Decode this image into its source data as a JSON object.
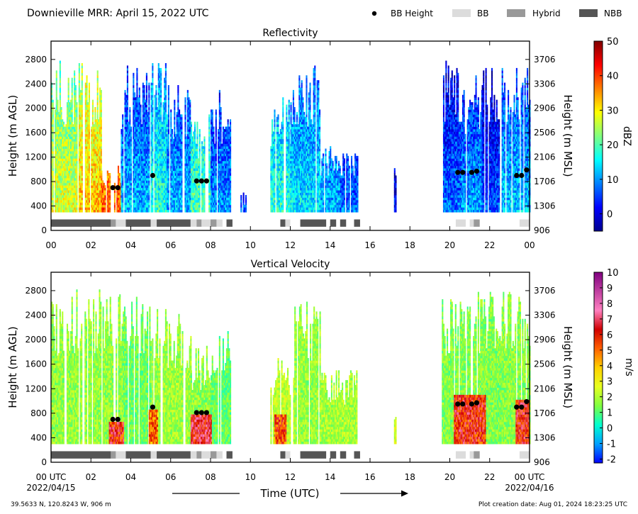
{
  "header": {
    "title": "Downieville MRR:  April 15, 2022 UTC",
    "legend": [
      {
        "label": "BB Height",
        "kind": "dot",
        "color": "#000000"
      },
      {
        "label": "BB",
        "kind": "box",
        "color": "#dcdcdc"
      },
      {
        "label": "Hybrid",
        "kind": "box",
        "color": "#999999"
      },
      {
        "label": "NBB",
        "kind": "box",
        "color": "#555555"
      }
    ]
  },
  "footer": {
    "coords": "39.5633 N, 120.8243 W, 906 m",
    "created": "Plot creation date: Aug 01, 2024 18:23:25 UTC",
    "xlabel": "Time (UTC)",
    "start_date": "2022/04/15",
    "end_date": "2022/04/16"
  },
  "chart_data": [
    {
      "type": "heatmap",
      "title": "Reflectivity",
      "ylabel": "Height (m AGL)",
      "ylabel_right": "Height (m MSL)",
      "y_ticks": [
        "0",
        "400",
        "800",
        "1200",
        "1600",
        "2000",
        "2400",
        "2800"
      ],
      "y_ticks_right": [
        "906",
        "1306",
        "1706",
        "2106",
        "2506",
        "2906",
        "3306",
        "3706"
      ],
      "x_ticks": [
        "00",
        "02",
        "04",
        "06",
        "08",
        "10",
        "12",
        "14",
        "16",
        "18",
        "20",
        "22",
        "00"
      ],
      "xlim_hours": [
        0,
        24
      ],
      "ylim_m": [
        0,
        3100
      ],
      "colorbar": {
        "label": "dBZ",
        "range": [
          -5,
          50
        ],
        "ticks": [
          "0",
          "10",
          "20",
          "30",
          "40",
          "50"
        ],
        "colors": [
          "#00008f",
          "#0000ff",
          "#0080ff",
          "#00ffff",
          "#80ff80",
          "#ffff00",
          "#ff8000",
          "#ff0000",
          "#800000"
        ]
      },
      "columns": [
        {
          "t0": 0.0,
          "t1": 1.4,
          "top": 2800,
          "z": 28
        },
        {
          "t0": 1.4,
          "t1": 2.5,
          "top": 2800,
          "z": 33
        },
        {
          "t0": 2.5,
          "t1": 3.5,
          "top": 1100,
          "z": 38
        },
        {
          "t0": 3.5,
          "t1": 5.0,
          "top": 2700,
          "z": 12
        },
        {
          "t0": 5.0,
          "t1": 5.8,
          "top": 2800,
          "z": 18
        },
        {
          "t0": 5.8,
          "t1": 7.0,
          "top": 2400,
          "z": 12
        },
        {
          "t0": 7.0,
          "t1": 8.0,
          "top": 1900,
          "z": 20
        },
        {
          "t0": 8.0,
          "t1": 9.0,
          "top": 2300,
          "z": 10
        },
        {
          "t0": 9.5,
          "t1": 9.8,
          "top": 600,
          "z": 5
        },
        {
          "t0": 11.0,
          "t1": 12.0,
          "top": 2200,
          "z": 18
        },
        {
          "t0": 12.0,
          "t1": 13.5,
          "top": 2700,
          "z": 15
        },
        {
          "t0": 13.5,
          "t1": 14.5,
          "top": 1400,
          "z": 12
        },
        {
          "t0": 14.5,
          "t1": 15.4,
          "top": 1300,
          "z": 8
        },
        {
          "t0": 17.2,
          "t1": 17.3,
          "top": 1000,
          "z": 2
        },
        {
          "t0": 19.6,
          "t1": 20.5,
          "top": 2800,
          "z": 8
        },
        {
          "t0": 20.5,
          "t1": 21.6,
          "top": 2600,
          "z": 11
        },
        {
          "t0": 21.6,
          "t1": 22.6,
          "top": 2700,
          "z": 6
        },
        {
          "t0": 22.6,
          "t1": 24.0,
          "top": 2800,
          "z": 13
        }
      ],
      "bb_height": [
        {
          "t": 3.1,
          "h": 700
        },
        {
          "t": 3.35,
          "h": 700
        },
        {
          "t": 5.1,
          "h": 900
        },
        {
          "t": 7.3,
          "h": 810
        },
        {
          "t": 7.55,
          "h": 810
        },
        {
          "t": 7.8,
          "h": 810
        },
        {
          "t": 20.4,
          "h": 950
        },
        {
          "t": 20.65,
          "h": 950
        },
        {
          "t": 21.1,
          "h": 950
        },
        {
          "t": 21.35,
          "h": 970
        },
        {
          "t": 23.35,
          "h": 900
        },
        {
          "t": 23.6,
          "h": 900
        },
        {
          "t": 23.85,
          "h": 990
        }
      ],
      "bb_type": [
        {
          "t0": 0.0,
          "t1": 3.0,
          "kind": "NBB"
        },
        {
          "t0": 3.0,
          "t1": 3.25,
          "kind": "Hybrid"
        },
        {
          "t0": 3.25,
          "t1": 3.75,
          "kind": "BB"
        },
        {
          "t0": 3.75,
          "t1": 5.0,
          "kind": "NBB"
        },
        {
          "t0": 5.0,
          "t1": 5.3,
          "kind": "BB"
        },
        {
          "t0": 5.3,
          "t1": 7.0,
          "kind": "NBB"
        },
        {
          "t0": 7.0,
          "t1": 7.3,
          "kind": "BB"
        },
        {
          "t0": 7.3,
          "t1": 7.55,
          "kind": "Hybrid"
        },
        {
          "t0": 7.55,
          "t1": 8.0,
          "kind": "BB"
        },
        {
          "t0": 8.0,
          "t1": 8.3,
          "kind": "Hybrid"
        },
        {
          "t0": 8.3,
          "t1": 8.6,
          "kind": "BB"
        },
        {
          "t0": 8.8,
          "t1": 9.1,
          "kind": "NBB"
        },
        {
          "t0": 11.5,
          "t1": 11.75,
          "kind": "NBB"
        },
        {
          "t0": 11.75,
          "t1": 12.0,
          "kind": "BB"
        },
        {
          "t0": 12.5,
          "t1": 13.8,
          "kind": "NBB"
        },
        {
          "t0": 14.0,
          "t1": 14.3,
          "kind": "NBB"
        },
        {
          "t0": 14.5,
          "t1": 14.8,
          "kind": "NBB"
        },
        {
          "t0": 15.2,
          "t1": 15.5,
          "kind": "NBB"
        },
        {
          "t0": 20.3,
          "t1": 20.8,
          "kind": "BB"
        },
        {
          "t0": 21.0,
          "t1": 21.2,
          "kind": "BB"
        },
        {
          "t0": 21.2,
          "t1": 21.5,
          "kind": "Hybrid"
        },
        {
          "t0": 23.5,
          "t1": 24.0,
          "kind": "BB"
        }
      ]
    },
    {
      "type": "heatmap",
      "title": "Vertical Velocity",
      "ylabel": "Height (m AGL)",
      "ylabel_right": "Height (m MSL)",
      "y_ticks": [
        "0",
        "400",
        "800",
        "1200",
        "1600",
        "2000",
        "2400",
        "2800"
      ],
      "y_ticks_right": [
        "906",
        "1306",
        "1706",
        "2106",
        "2506",
        "2906",
        "3306",
        "3706"
      ],
      "x_ticks": [
        "00 UTC",
        "02",
        "04",
        "06",
        "08",
        "10",
        "12",
        "14",
        "16",
        "18",
        "20",
        "22",
        "00 UTC"
      ],
      "xlim_hours": [
        0,
        24
      ],
      "ylim_m": [
        0,
        3100
      ],
      "colorbar": {
        "label": "m/s",
        "range": [
          -2.25,
          10
        ],
        "ticks": [
          "-2",
          "-1",
          "0",
          "1",
          "2",
          "3",
          "4",
          "5",
          "6",
          "7",
          "8",
          "9",
          "10"
        ],
        "colors": [
          "#0000ff",
          "#00a0ff",
          "#00ffd0",
          "#80ff40",
          "#e8ff20",
          "#ffd000",
          "#ff6000",
          "#d00000",
          "#ff80c0",
          "#c040a0",
          "#800080"
        ]
      },
      "columns": [
        {
          "t0": 0.0,
          "t1": 3.6,
          "top": 2800,
          "w": 1.7
        },
        {
          "t0": 3.6,
          "t1": 5.0,
          "top": 2700,
          "w": 1.3
        },
        {
          "t0": 5.0,
          "t1": 7.0,
          "top": 2500,
          "w": 1.8
        },
        {
          "t0": 7.0,
          "t1": 8.0,
          "top": 1900,
          "w": 1.6
        },
        {
          "t0": 8.0,
          "t1": 9.0,
          "top": 2300,
          "w": 1.2
        },
        {
          "t0": 11.0,
          "t1": 12.2,
          "top": 1800,
          "w": 2.2
        },
        {
          "t0": 12.2,
          "t1": 13.5,
          "top": 2700,
          "w": 1.7
        },
        {
          "t0": 13.5,
          "t1": 15.4,
          "top": 1500,
          "w": 1.9
        },
        {
          "t0": 17.2,
          "t1": 17.3,
          "top": 800,
          "w": 2.4
        },
        {
          "t0": 19.6,
          "t1": 22.6,
          "top": 2800,
          "w": 1.5
        },
        {
          "t0": 22.6,
          "t1": 24.0,
          "top": 2800,
          "w": 1.6
        }
      ],
      "hot_bands": [
        {
          "t0": 2.9,
          "t1": 3.6,
          "top": 650,
          "w": 6.0
        },
        {
          "t0": 4.9,
          "t1": 5.3,
          "top": 850,
          "w": 5.0
        },
        {
          "t0": 7.0,
          "t1": 8.0,
          "top": 780,
          "w": 6.5
        },
        {
          "t0": 11.2,
          "t1": 11.8,
          "top": 750,
          "w": 5.5
        },
        {
          "t0": 20.2,
          "t1": 21.8,
          "top": 1100,
          "w": 6.0
        },
        {
          "t0": 23.3,
          "t1": 24.0,
          "top": 1000,
          "w": 6.0
        }
      ],
      "bb_height": [
        {
          "t": 3.1,
          "h": 700
        },
        {
          "t": 3.35,
          "h": 700
        },
        {
          "t": 5.1,
          "h": 900
        },
        {
          "t": 7.3,
          "h": 810
        },
        {
          "t": 7.55,
          "h": 810
        },
        {
          "t": 7.8,
          "h": 810
        },
        {
          "t": 20.4,
          "h": 950
        },
        {
          "t": 20.65,
          "h": 950
        },
        {
          "t": 21.1,
          "h": 950
        },
        {
          "t": 21.35,
          "h": 970
        },
        {
          "t": 23.35,
          "h": 900
        },
        {
          "t": 23.6,
          "h": 900
        },
        {
          "t": 23.85,
          "h": 990
        }
      ],
      "bb_type": [
        {
          "t0": 0.0,
          "t1": 3.0,
          "kind": "NBB"
        },
        {
          "t0": 3.0,
          "t1": 3.25,
          "kind": "Hybrid"
        },
        {
          "t0": 3.25,
          "t1": 3.75,
          "kind": "BB"
        },
        {
          "t0": 3.75,
          "t1": 5.0,
          "kind": "NBB"
        },
        {
          "t0": 5.0,
          "t1": 5.3,
          "kind": "BB"
        },
        {
          "t0": 5.3,
          "t1": 7.0,
          "kind": "NBB"
        },
        {
          "t0": 7.0,
          "t1": 7.3,
          "kind": "BB"
        },
        {
          "t0": 7.3,
          "t1": 7.55,
          "kind": "Hybrid"
        },
        {
          "t0": 7.55,
          "t1": 8.0,
          "kind": "BB"
        },
        {
          "t0": 8.0,
          "t1": 8.3,
          "kind": "Hybrid"
        },
        {
          "t0": 8.3,
          "t1": 8.6,
          "kind": "BB"
        },
        {
          "t0": 8.8,
          "t1": 9.1,
          "kind": "NBB"
        },
        {
          "t0": 11.5,
          "t1": 11.75,
          "kind": "NBB"
        },
        {
          "t0": 11.75,
          "t1": 12.0,
          "kind": "BB"
        },
        {
          "t0": 12.5,
          "t1": 13.8,
          "kind": "NBB"
        },
        {
          "t0": 14.0,
          "t1": 14.3,
          "kind": "NBB"
        },
        {
          "t0": 14.5,
          "t1": 14.8,
          "kind": "NBB"
        },
        {
          "t0": 15.2,
          "t1": 15.5,
          "kind": "NBB"
        },
        {
          "t0": 20.3,
          "t1": 20.8,
          "kind": "BB"
        },
        {
          "t0": 21.0,
          "t1": 21.2,
          "kind": "BB"
        },
        {
          "t0": 21.2,
          "t1": 21.5,
          "kind": "Hybrid"
        },
        {
          "t0": 23.5,
          "t1": 24.0,
          "kind": "BB"
        }
      ]
    }
  ]
}
